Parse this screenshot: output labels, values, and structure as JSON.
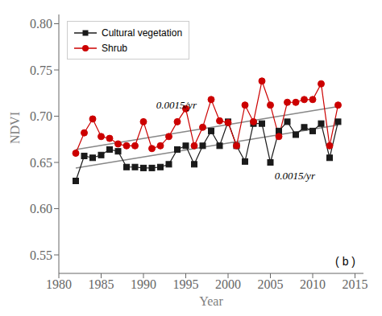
{
  "chart_data": {
    "type": "line",
    "x": [
      1982,
      1983,
      1984,
      1985,
      1986,
      1987,
      1988,
      1989,
      1990,
      1991,
      1992,
      1993,
      1994,
      1995,
      1996,
      1997,
      1998,
      1999,
      2000,
      2001,
      2002,
      2003,
      2004,
      2005,
      2006,
      2007,
      2008,
      2009,
      2010,
      2011,
      2012,
      2013
    ],
    "series": [
      {
        "name": "Cultural vegetation",
        "color": "#1a1a1a",
        "marker": "square",
        "values": [
          0.63,
          0.657,
          0.655,
          0.658,
          0.664,
          0.662,
          0.645,
          0.645,
          0.644,
          0.644,
          0.645,
          0.648,
          0.664,
          0.668,
          0.648,
          0.668,
          0.684,
          0.668,
          0.694,
          0.668,
          0.651,
          0.692,
          0.692,
          0.65,
          0.684,
          0.694,
          0.68,
          0.688,
          0.684,
          0.692,
          0.655,
          0.694
        ]
      },
      {
        "name": "Shrub",
        "color": "#cc0000",
        "marker": "circle",
        "values": [
          0.66,
          0.682,
          0.697,
          0.678,
          0.676,
          0.67,
          0.668,
          0.668,
          0.694,
          0.665,
          0.668,
          0.678,
          0.694,
          0.708,
          0.668,
          0.688,
          0.718,
          0.695,
          0.693,
          0.668,
          0.712,
          0.694,
          0.738,
          0.712,
          0.678,
          0.715,
          0.715,
          0.718,
          0.718,
          0.735,
          0.668,
          0.712
        ]
      }
    ],
    "trend_lines": [
      {
        "x": [
          1982,
          2013
        ],
        "values": [
          0.644,
          0.6905
        ],
        "color": "#888888"
      },
      {
        "x": [
          1982,
          2013
        ],
        "values": [
          0.664,
          0.7105
        ],
        "color": "#888888"
      }
    ],
    "annotations": [
      {
        "text": "0.0015/yr",
        "x": 1991.5,
        "y": 0.708
      },
      {
        "text": "0.0015/yr",
        "x": 2005.5,
        "y": 0.632
      },
      {
        "text": "( b )"
      }
    ],
    "xlabel": "Year",
    "ylabel": "NDVI",
    "xlim": [
      1980,
      2016
    ],
    "xticks": [
      1980,
      1985,
      1990,
      1995,
      2000,
      2005,
      2010,
      2015
    ],
    "ylim": [
      0.53,
      0.81
    ],
    "yticks": [
      0.55,
      {
        "value": 0.6,
        "label": "0.60"
      },
      0.65,
      {
        "value": 0.7,
        "label": "0.70"
      },
      0.75,
      {
        "value": 0.8,
        "label": "0.80"
      }
    ],
    "legend": "upper left",
    "grid": false
  }
}
